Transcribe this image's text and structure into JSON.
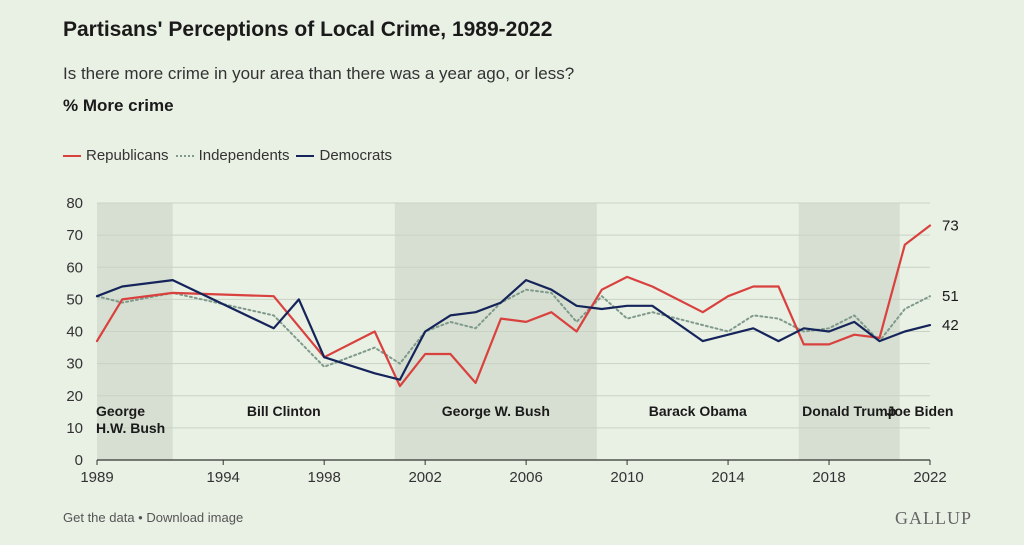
{
  "title": "Partisans' Perceptions of Local Crime, 1989-2022",
  "subtitle": "Is there more crime in your area than there was a year ago, or less?",
  "unit_label": "% More crime",
  "legend": [
    "Republicans",
    "Independents",
    "Democrats"
  ],
  "footer": {
    "get_data": "Get the data",
    "separator": " • ",
    "download": "Download image"
  },
  "brand": "GALLUP",
  "colors": {
    "republicans": "#d9413f",
    "independents": "#7f9a8c",
    "democrats": "#15245a",
    "shade": "#d6dfd1",
    "background": "#e9f0e4"
  },
  "chart_data": {
    "type": "line",
    "xlim": [
      1989,
      2022
    ],
    "ylim": [
      0,
      80
    ],
    "yticks": [
      0,
      10,
      20,
      30,
      40,
      50,
      60,
      70,
      80
    ],
    "xticks": [
      "1989",
      "1994",
      "1998",
      "2002",
      "2006",
      "2010",
      "2014",
      "2018",
      "2022"
    ],
    "grid": true,
    "legend_position": "top-left",
    "series": [
      {
        "name": "Republicans",
        "style": "solid",
        "x": [
          1989,
          1990,
          1992,
          1996,
          1998,
          2000,
          2001,
          2002,
          2003,
          2004,
          2005,
          2006,
          2007,
          2008,
          2009,
          2010,
          2011,
          2013,
          2014,
          2015,
          2016,
          2017,
          2018,
          2019,
          2020,
          2021,
          2022
        ],
        "y": [
          37,
          50,
          52,
          51,
          32,
          40,
          23,
          33,
          33,
          24,
          44,
          43,
          46,
          40,
          53,
          57,
          54,
          46,
          51,
          54,
          54,
          36,
          36,
          39,
          38,
          67,
          73
        ]
      },
      {
        "name": "Independents",
        "style": "dotted",
        "x": [
          1989,
          1990,
          1992,
          1996,
          1998,
          2000,
          2001,
          2002,
          2003,
          2004,
          2005,
          2006,
          2007,
          2008,
          2009,
          2010,
          2011,
          2013,
          2014,
          2015,
          2016,
          2017,
          2018,
          2019,
          2020,
          2021,
          2022
        ],
        "y": [
          51,
          49,
          52,
          45,
          29,
          35,
          30,
          40,
          43,
          41,
          49,
          53,
          52,
          43,
          51,
          44,
          46,
          42,
          40,
          45,
          44,
          40,
          41,
          45,
          37,
          47,
          51
        ]
      },
      {
        "name": "Democrats",
        "style": "solid",
        "x": [
          1989,
          1990,
          1992,
          1996,
          1997,
          1998,
          2000,
          2001,
          2002,
          2003,
          2004,
          2005,
          2006,
          2007,
          2008,
          2009,
          2010,
          2011,
          2013,
          2014,
          2015,
          2016,
          2017,
          2018,
          2019,
          2020,
          2021,
          2022
        ],
        "y": [
          51,
          54,
          56,
          41,
          50,
          32,
          27,
          25,
          40,
          45,
          46,
          49,
          56,
          53,
          48,
          47,
          48,
          48,
          37,
          39,
          41,
          37,
          41,
          40,
          43,
          37,
          40,
          42
        ]
      }
    ],
    "end_labels": [
      {
        "series": "Republicans",
        "text": "73"
      },
      {
        "series": "Independents",
        "text": "51"
      },
      {
        "series": "Democrats",
        "text": "42"
      }
    ],
    "presidencies": [
      {
        "name": "George H.W. Bush",
        "label_lines": [
          "George",
          "H.W. Bush"
        ],
        "start": 1989,
        "end": 1992,
        "shaded": true
      },
      {
        "name": "Bill Clinton",
        "label_lines": [
          "Bill Clinton"
        ],
        "start": 1992,
        "end": 2000.8,
        "shaded": false
      },
      {
        "name": "George W. Bush",
        "label_lines": [
          "George W. Bush"
        ],
        "start": 2000.8,
        "end": 2008.8,
        "shaded": true
      },
      {
        "name": "Barack Obama",
        "label_lines": [
          "Barack Obama"
        ],
        "start": 2008.8,
        "end": 2016.8,
        "shaded": false
      },
      {
        "name": "Donald Trump",
        "label_lines": [
          "Donald Trump"
        ],
        "start": 2016.8,
        "end": 2020.8,
        "shaded": true
      },
      {
        "name": "Joe Biden",
        "label_lines": [
          "Joe Biden"
        ],
        "start": 2020.8,
        "end": 2022,
        "shaded": false
      }
    ]
  }
}
